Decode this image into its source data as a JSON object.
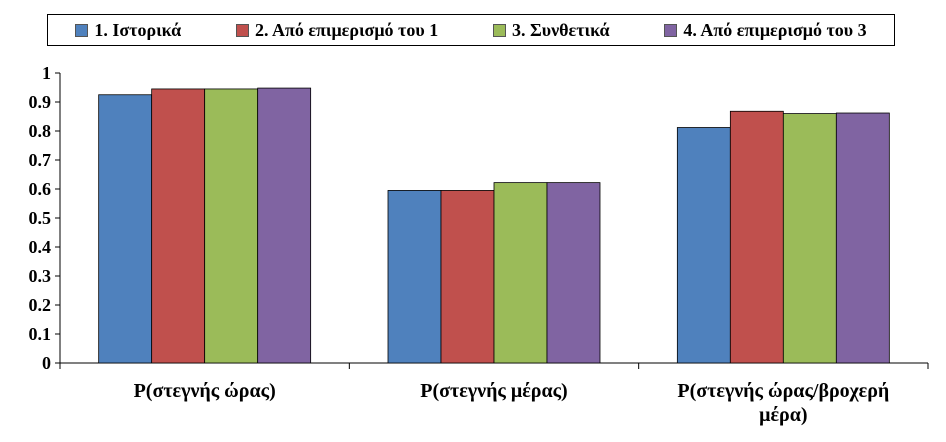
{
  "chart_data": {
    "type": "bar",
    "categories": [
      "P(στεγνής ώρας)",
      "P(στεγνής μέρας)",
      "P(στεγνής ώρας/βροχερή μέρα)"
    ],
    "category_lines": [
      [
        "P(στεγνής ώρας)"
      ],
      [
        "P(στεγνής μέρας)"
      ],
      [
        "P(στεγνής ώρας/βροχερή",
        "μέρα)"
      ]
    ],
    "series": [
      {
        "name": "1. Ιστορικά",
        "color": "#4F81BD",
        "values": [
          0.925,
          0.595,
          0.812
        ]
      },
      {
        "name": "2. Από επιμερισμό του 1",
        "color": "#C0504D",
        "values": [
          0.945,
          0.595,
          0.868
        ]
      },
      {
        "name": "3. Συνθετικά",
        "color": "#9BBB59",
        "values": [
          0.945,
          0.622,
          0.86
        ]
      },
      {
        "name": "4. Από επιμερισμό του 3",
        "color": "#8064A2",
        "values": [
          0.948,
          0.622,
          0.862
        ]
      }
    ],
    "ylim": [
      0,
      1
    ],
    "yticks": [
      "0",
      "0.1",
      "0.2",
      "0.3",
      "0.4",
      "0.5",
      "0.6",
      "0.7",
      "0.8",
      "0.9",
      "1"
    ],
    "legend_position": "top",
    "grid": false
  }
}
